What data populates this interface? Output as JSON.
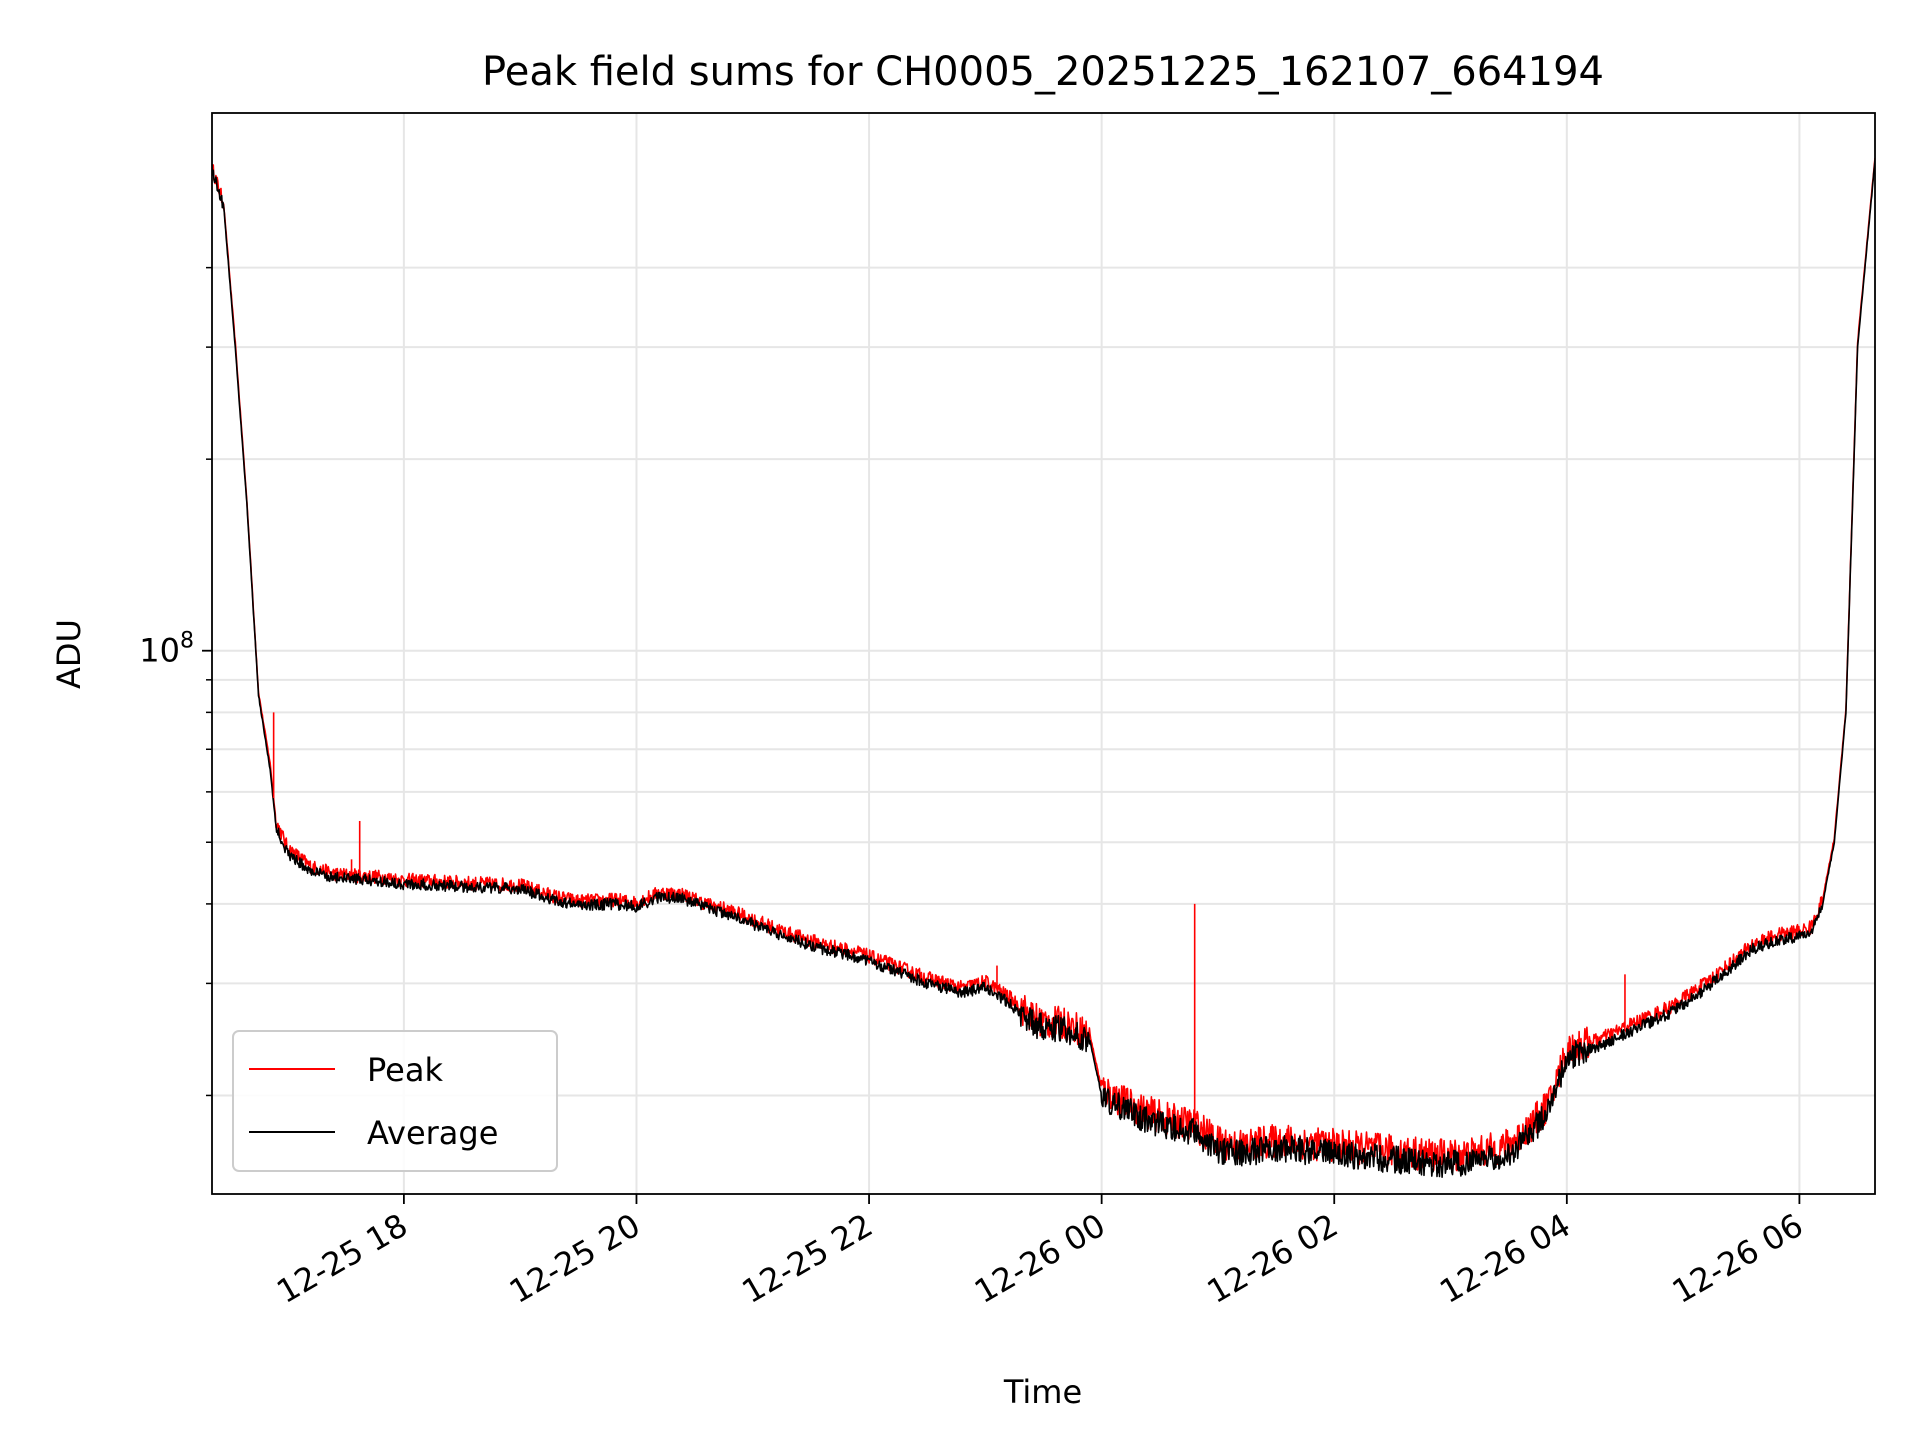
{
  "chart_data": {
    "type": "line",
    "title": "Peak field sums for CH0005_20251225_162107_664194",
    "xlabel": "Time",
    "ylabel": "ADU",
    "yscale": "log",
    "ylim": [
      14000000,
      700000000
    ],
    "x_unit": "hours since 2025-12-25 00:00",
    "xlim": [
      16.35,
      30.65
    ],
    "xticks": [
      {
        "value": 18,
        "label": "12-25 18"
      },
      {
        "value": 20,
        "label": "12-25 20"
      },
      {
        "value": 22,
        "label": "12-25 22"
      },
      {
        "value": 24,
        "label": "12-26 00"
      },
      {
        "value": 26,
        "label": "12-26 02"
      },
      {
        "value": 28,
        "label": "12-26 04"
      },
      {
        "value": 30,
        "label": "12-26 06"
      }
    ],
    "yticks_major": [
      {
        "value": 100000000,
        "base": "10",
        "exp": "8"
      }
    ],
    "yticks_minor": [
      20000000,
      30000000,
      40000000,
      50000000,
      60000000,
      70000000,
      80000000,
      90000000,
      200000000,
      300000000,
      400000000
    ],
    "grid": true,
    "legend": {
      "position": "lower-left",
      "entries": [
        {
          "label": "Peak",
          "color": "#ff0000"
        },
        {
          "label": "Average",
          "color": "#000000"
        }
      ]
    },
    "series": [
      {
        "name": "Average",
        "color": "#000000",
        "x": [
          16.35,
          16.45,
          16.55,
          16.65,
          16.75,
          16.85,
          16.9,
          17.0,
          17.2,
          17.4,
          17.6,
          17.8,
          18.0,
          18.3,
          18.6,
          19.0,
          19.3,
          19.5,
          19.8,
          20.0,
          20.2,
          20.4,
          20.6,
          20.8,
          21.0,
          21.3,
          21.6,
          21.9,
          22.2,
          22.5,
          22.8,
          23.0,
          23.2,
          23.4,
          23.5,
          23.7,
          23.9,
          24.0,
          24.2,
          24.4,
          24.6,
          24.8,
          25.0,
          25.2,
          25.4,
          25.6,
          25.8,
          26.0,
          26.3,
          26.6,
          26.9,
          27.2,
          27.5,
          27.7,
          27.85,
          28.0,
          28.3,
          28.6,
          28.9,
          29.2,
          29.4,
          29.6,
          29.8,
          30.0,
          30.1,
          30.2,
          30.3,
          30.4,
          30.5,
          30.65
        ],
        "y": [
          570000000,
          500000000,
          300000000,
          170000000,
          85000000,
          65000000,
          53000000,
          48000000,
          45000000,
          44000000,
          43700000,
          43500000,
          43000000,
          42800000,
          42500000,
          42200000,
          40500000,
          39800000,
          40000000,
          39600000,
          41000000,
          40800000,
          39400000,
          38500000,
          37200000,
          35400000,
          34000000,
          33000000,
          31500000,
          30000000,
          29000000,
          29600000,
          28000000,
          26000000,
          25600000,
          25300000,
          24300000,
          20000000,
          19000000,
          18300000,
          17800000,
          17500000,
          16400000,
          16200000,
          16400000,
          16500000,
          16300000,
          16200000,
          16000000,
          15800000,
          15600000,
          15700000,
          16200000,
          17500000,
          19000000,
          23000000,
          24000000,
          25500000,
          27000000,
          29500000,
          31600000,
          34000000,
          35000000,
          35600000,
          36000000,
          40000000,
          50000000,
          80000000,
          300000000,
          590000000
        ]
      },
      {
        "name": "Peak",
        "color": "#ff0000",
        "x": [
          16.35,
          16.45,
          16.55,
          16.65,
          16.75,
          16.85,
          16.9,
          17.0,
          17.2,
          17.4,
          17.6,
          17.8,
          18.0,
          18.3,
          18.6,
          19.0,
          19.3,
          19.5,
          19.8,
          20.0,
          20.2,
          20.4,
          20.6,
          20.8,
          21.0,
          21.3,
          21.6,
          21.9,
          22.2,
          22.5,
          22.8,
          23.0,
          23.2,
          23.4,
          23.5,
          23.7,
          23.9,
          24.0,
          24.2,
          24.4,
          24.6,
          24.8,
          25.0,
          25.2,
          25.4,
          25.6,
          25.8,
          26.0,
          26.3,
          26.6,
          26.9,
          27.2,
          27.5,
          27.7,
          27.85,
          28.0,
          28.3,
          28.6,
          28.9,
          29.2,
          29.4,
          29.6,
          29.8,
          30.0,
          30.1,
          30.2,
          30.3,
          30.4,
          30.5,
          30.65
        ],
        "y": [
          575000000,
          505000000,
          305000000,
          172000000,
          86000000,
          66500000,
          54000000,
          49000000,
          45800000,
          44600000,
          44300000,
          44100000,
          43600000,
          43400000,
          43100000,
          42800000,
          41100000,
          40400000,
          40600000,
          40200000,
          41700000,
          41400000,
          40000000,
          39100000,
          37800000,
          36000000,
          34600000,
          33600000,
          32100000,
          30600000,
          29500000,
          30200000,
          28600000,
          26600000,
          26100000,
          25900000,
          24900000,
          20500000,
          19500000,
          18800000,
          18300000,
          18000000,
          16900000,
          16700000,
          16900000,
          17000000,
          16800000,
          16700000,
          16500000,
          16300000,
          16100000,
          16200000,
          16700000,
          18000000,
          19500000,
          23600000,
          24600000,
          26100000,
          27600000,
          30100000,
          32200000,
          34600000,
          35700000,
          36300000,
          36700000,
          40700000,
          50800000,
          81000000,
          305000000,
          595000000
        ]
      }
    ],
    "peak_spikes": [
      {
        "x": 16.88,
        "y": 80000000
      },
      {
        "x": 17.55,
        "y": 47000000
      },
      {
        "x": 17.62,
        "y": 54000000
      },
      {
        "x": 23.1,
        "y": 32000000
      },
      {
        "x": 24.8,
        "y": 40000000
      },
      {
        "x": 28.5,
        "y": 31000000
      }
    ]
  }
}
